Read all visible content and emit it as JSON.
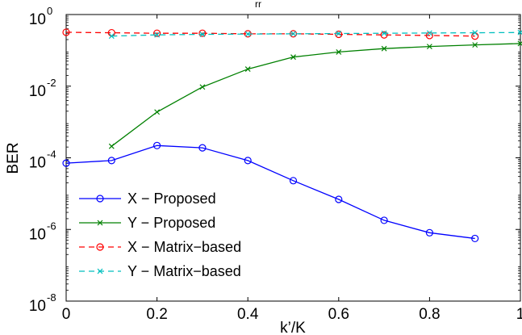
{
  "top_fragment": "rr",
  "chart_data": {
    "type": "line",
    "title": "",
    "xlabel": "k’/K",
    "ylabel": "BER",
    "xlim": [
      0,
      1
    ],
    "ylim": [
      1e-08,
      1
    ],
    "yscale": "log",
    "grid": false,
    "legend_position": "bottom-left",
    "x_ticks": [
      {
        "value": 0,
        "label": "0"
      },
      {
        "value": 0.2,
        "label": "0.2"
      },
      {
        "value": 0.4,
        "label": "0.4"
      },
      {
        "value": 0.6,
        "label": "0.6"
      },
      {
        "value": 0.8,
        "label": "0.8"
      },
      {
        "value": 1,
        "label": "1"
      }
    ],
    "y_ticks": [
      {
        "value": 1e-08,
        "base": "10",
        "exp": "-8"
      },
      {
        "value": 1e-06,
        "base": "10",
        "exp": "-6"
      },
      {
        "value": 0.0001,
        "base": "10",
        "exp": "-4"
      },
      {
        "value": 0.01,
        "base": "10",
        "exp": "-2"
      },
      {
        "value": 1,
        "base": "10",
        "exp": "0"
      }
    ],
    "series": [
      {
        "name": "X − Proposed",
        "color": "#0000ff",
        "line_style": "solid",
        "marker": "circle",
        "x": [
          0,
          0.1,
          0.2,
          0.3,
          0.4,
          0.5,
          0.6,
          0.7,
          0.8,
          0.9
        ],
        "y": [
          7.1e-05,
          8.4e-05,
          0.00022,
          0.00019,
          8.4e-05,
          2.3e-05,
          6.9e-06,
          1.8e-06,
          8.1e-07,
          5.6e-07
        ]
      },
      {
        "name": "Y − Proposed",
        "color": "#008000",
        "line_style": "solid",
        "marker": "x",
        "x": [
          0.1,
          0.2,
          0.3,
          0.4,
          0.5,
          0.6,
          0.7,
          0.8,
          0.9,
          1.0
        ],
        "y": [
          0.00021,
          0.0019,
          0.0095,
          0.03,
          0.065,
          0.09,
          0.112,
          0.128,
          0.142,
          0.155
        ]
      },
      {
        "name": "X − Matrix−based",
        "color": "#ff0000",
        "line_style": "dashed",
        "marker": "circle",
        "x": [
          0,
          0.1,
          0.2,
          0.3,
          0.4,
          0.5,
          0.6,
          0.7,
          0.8,
          0.9
        ],
        "y": [
          0.32,
          0.31,
          0.3,
          0.3,
          0.29,
          0.29,
          0.28,
          0.27,
          0.26,
          0.25
        ]
      },
      {
        "name": "Y − Matrix−based",
        "color": "#00bfbf",
        "line_style": "dashed",
        "marker": "x",
        "x": [
          0.1,
          0.2,
          0.3,
          0.4,
          0.5,
          0.6,
          0.7,
          0.8,
          0.9,
          1.0
        ],
        "y": [
          0.25,
          0.27,
          0.28,
          0.285,
          0.29,
          0.295,
          0.3,
          0.305,
          0.31,
          0.315
        ]
      }
    ]
  }
}
